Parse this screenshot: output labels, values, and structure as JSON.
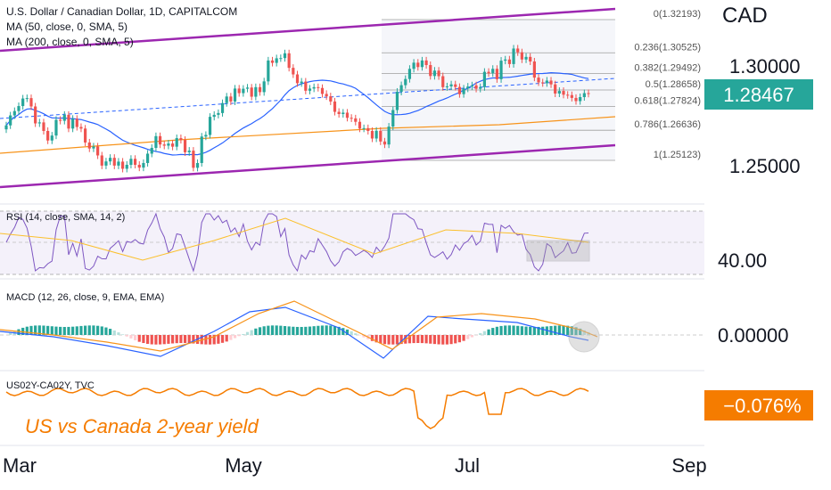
{
  "header": {
    "title": "U.S. Dollar / Canadian Dollar, 1D, CAPITALCOM",
    "ma50": "MA (50, close, 0, SMA, 5)",
    "ma200": "MA (200, close, 0, SMA, 5)",
    "currency": "CAD"
  },
  "price_axis": {
    "ticks": [
      "1.30000",
      "1.25000"
    ],
    "last_price": "1.28467",
    "last_price_color": "#26a69a"
  },
  "fib_levels": [
    {
      "label": "0(1.32193)",
      "value": 1.32193
    },
    {
      "label": "0.236(1.30525)",
      "value": 1.30525
    },
    {
      "label": "0.382(1.29492)",
      "value": 1.29492
    },
    {
      "label": "0.5(1.28658)",
      "value": 1.28658
    },
    {
      "label": "0.618(1.27824)",
      "value": 1.27824
    },
    {
      "label": "0.786(1.26636)",
      "value": 1.26636
    },
    {
      "label": "1(1.25123)",
      "value": 1.25123
    }
  ],
  "rsi": {
    "label": "RSI (14, close, SMA, 14, 2)",
    "axis_value": "40.00"
  },
  "macd": {
    "label": "MACD (12, 26, close, 9, EMA, EMA)",
    "axis_value": "0.00000"
  },
  "spread": {
    "label": "US02Y-CA02Y, TVC",
    "annotation": "US vs Canada 2-year yield",
    "value_badge": "−0.076%",
    "badge_color": "#f57c00"
  },
  "time_axis": [
    "Mar",
    "May",
    "Jul",
    "Sep"
  ],
  "colors": {
    "up": "#26a69a",
    "down": "#ef5350",
    "ma50": "#2962ff",
    "ma200": "#f7931a",
    "channel": "#9c27b0",
    "rsi": "#7e57c2",
    "spread": "#f57c00"
  },
  "chart_data": {
    "type": "candlestick",
    "symbol": "USDCAD",
    "timeframe": "1D",
    "close": [
      1.2688,
      1.2738,
      1.276,
      1.2785,
      1.2823,
      1.2825,
      1.2783,
      1.2698,
      1.2703,
      1.266,
      1.2612,
      1.2637,
      1.2716,
      1.2711,
      1.2741,
      1.2672,
      1.2721,
      1.268,
      1.2672,
      1.2602,
      1.2572,
      1.2582,
      1.2537,
      1.2486,
      1.2507,
      1.2525,
      1.2486,
      1.2506,
      1.247,
      1.249,
      1.252,
      1.249,
      1.2476,
      1.2499,
      1.2546,
      1.2575,
      1.2634,
      1.2592,
      1.2586,
      1.2597,
      1.2581,
      1.2624,
      1.2615,
      1.2553,
      1.2561,
      1.2475,
      1.2499,
      1.2632,
      1.264,
      1.2731,
      1.2741,
      1.275,
      1.28,
      1.2833,
      1.2808,
      1.2873,
      1.285,
      1.2872,
      1.2878,
      1.2832,
      1.288,
      1.2855,
      1.2909,
      1.3014,
      1.3002,
      1.3025,
      1.3026,
      1.305,
      1.2977,
      1.2944,
      1.29,
      1.2908,
      1.2862,
      1.2873,
      1.288,
      1.2876,
      1.2846,
      1.2834,
      1.2808,
      1.2756,
      1.2745,
      1.2752,
      1.2726,
      1.2723,
      1.2706,
      1.2672,
      1.2674,
      1.266,
      1.2622,
      1.2661,
      1.2607,
      1.2592,
      1.2682,
      1.2765,
      1.2857,
      1.289,
      1.2921,
      1.2972,
      1.3003,
      1.2981,
      1.3014,
      1.2991,
      1.2936,
      1.2963,
      1.2935,
      1.288,
      1.2884,
      1.2894,
      1.2881,
      1.2845,
      1.2873,
      1.2883,
      1.2889,
      1.2872,
      1.288,
      1.2957,
      1.295,
      1.2972,
      1.292,
      1.3013,
      1.3019,
      1.2996,
      1.3074,
      1.3055,
      1.3019,
      1.3032,
      1.3009,
      1.2928,
      1.2904,
      1.29,
      1.2913,
      1.2894,
      1.2848,
      1.2861,
      1.2842,
      1.284,
      1.2826,
      1.281,
      1.283,
      1.285,
      1.2847
    ]
  }
}
